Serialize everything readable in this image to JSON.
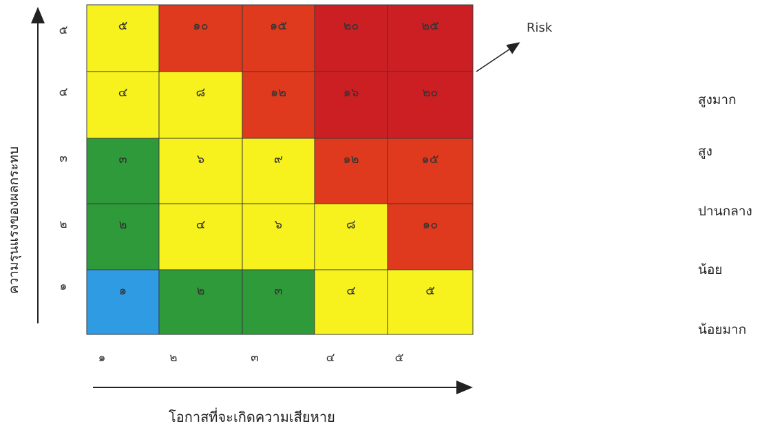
{
  "diagram": {
    "x_axis_label": "โอกาสที่จะเกิดความเสียหาย",
    "y_axis_label": "ความรุนแรงของผลกระทบ",
    "x_ticks": [
      "๑",
      "๒",
      "๓",
      "๔",
      "๕"
    ],
    "y_ticks": [
      "๕",
      "๔",
      "๓",
      "๒",
      "๑"
    ],
    "risk_annotation": "Risk",
    "legend": [
      "สูงมาก",
      "สูง",
      "ปานกลาง",
      "น้อย",
      "น้อยมาก"
    ],
    "colors": {
      "dark_red": "#cc1f24",
      "red": "#e03a1e",
      "yellow": "#f7f21e",
      "green": "#2f9a3a",
      "blue": "#2f9be3",
      "cell_text": "#333333",
      "grid_line": "#3a3a3a"
    },
    "matrix": [
      [
        {
          "value": "๕",
          "color": "yellow"
        },
        {
          "value": "๑๐",
          "color": "red"
        },
        {
          "value": "๑๕",
          "color": "red"
        },
        {
          "value": "๒๐",
          "color": "dark_red"
        },
        {
          "value": "๒๕",
          "color": "dark_red"
        }
      ],
      [
        {
          "value": "๔",
          "color": "yellow"
        },
        {
          "value": "๘",
          "color": "yellow"
        },
        {
          "value": "๑๒",
          "color": "red"
        },
        {
          "value": "๑๖",
          "color": "dark_red"
        },
        {
          "value": "๒๐",
          "color": "dark_red"
        }
      ],
      [
        {
          "value": "๓",
          "color": "green"
        },
        {
          "value": "๖",
          "color": "yellow"
        },
        {
          "value": "๙",
          "color": "yellow"
        },
        {
          "value": "๑๒",
          "color": "red"
        },
        {
          "value": "๑๕",
          "color": "red"
        }
      ],
      [
        {
          "value": "๒",
          "color": "green"
        },
        {
          "value": "๔",
          "color": "yellow"
        },
        {
          "value": "๖",
          "color": "yellow"
        },
        {
          "value": "๘",
          "color": "yellow"
        },
        {
          "value": "๑๐",
          "color": "red"
        }
      ],
      [
        {
          "value": "๑",
          "color": "blue"
        },
        {
          "value": "๒",
          "color": "green"
        },
        {
          "value": "๓",
          "color": "green"
        },
        {
          "value": "๔",
          "color": "yellow"
        },
        {
          "value": "๕",
          "color": "yellow"
        }
      ]
    ]
  }
}
